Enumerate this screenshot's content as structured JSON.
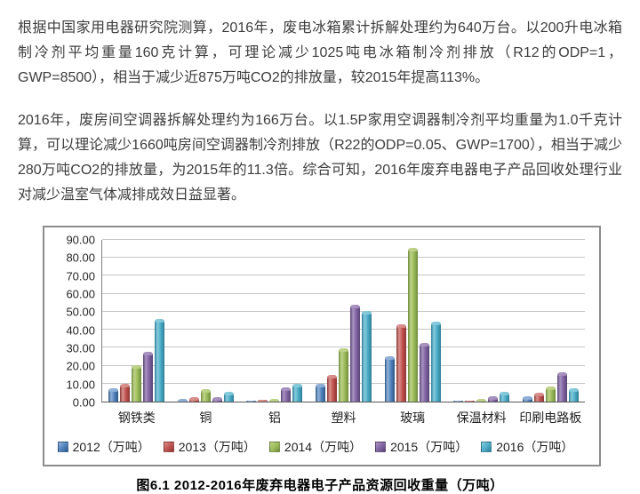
{
  "article": {
    "paragraph1": "根据中国家用电器研究院测算，2016年，废电冰箱累计拆解处理约为640万台。以200升电冰箱制冷剂平均重量160克计算，可理论减少1025吨电冰箱制冷剂排放（R12的ODP=1，GWP=8500），相当于减少近875万吨CO2的排放量，较2015年提高113%。",
    "paragraph2": "2016年，废房间空调器拆解处理约为166万台。以1.5P家用空调器制冷剂平均重量为1.0千克计算，可以理论减少1660吨房间空调器制冷剂排放（R22的ODP=0.05、GWP=1700），相当于减少280万吨CO2的排放量，为2015年的11.3倍。综合可知，2016年废弃电器电子产品回收处理行业对减少温室气体减排成效日益显著。",
    "caption": "图6.1 2012-2016年废弃电器电子产品资源回收重量（万吨）"
  },
  "chart_data": {
    "type": "bar",
    "title": "",
    "xlabel": "",
    "ylabel": "",
    "units": "万吨",
    "categories": [
      "钢铁类",
      "铜",
      "铝",
      "塑料",
      "玻璃",
      "保温材料",
      "印刷电路板"
    ],
    "series": [
      {
        "name": "2012（万吨）",
        "color": "#4F81BD",
        "color_light": "#94B3D9",
        "color_dark": "#2E5984",
        "values": [
          7.5,
          1.4,
          0.7,
          10.0,
          25.0,
          0.4,
          3.2
        ]
      },
      {
        "name": "2013（万吨）",
        "color": "#C0504D",
        "color_light": "#D9928F",
        "color_dark": "#8C3836",
        "values": [
          9.8,
          2.3,
          0.9,
          15.0,
          43.0,
          0.5,
          4.8
        ]
      },
      {
        "name": "2014（万吨）",
        "color": "#9BBB59",
        "color_light": "#BFD38A",
        "color_dark": "#6E8B3D",
        "values": [
          20.5,
          7.0,
          1.6,
          29.5,
          85.5,
          1.3,
          8.4
        ]
      },
      {
        "name": "2015（万吨）",
        "color": "#8064A2",
        "color_light": "#A893C0",
        "color_dark": "#584374",
        "values": [
          27.7,
          2.6,
          7.8,
          54.0,
          32.5,
          2.8,
          16.5
        ]
      },
      {
        "name": "2016（万吨）",
        "color": "#4BACC6",
        "color_light": "#87CBDD",
        "color_dark": "#2E7D96",
        "values": [
          46.0,
          5.3,
          9.8,
          50.5,
          44.5,
          5.6,
          7.5
        ]
      }
    ],
    "ylim": [
      0,
      90
    ],
    "ytick_step": 10,
    "ytick_decimals": 2,
    "grid": true,
    "legend_position": "bottom"
  }
}
